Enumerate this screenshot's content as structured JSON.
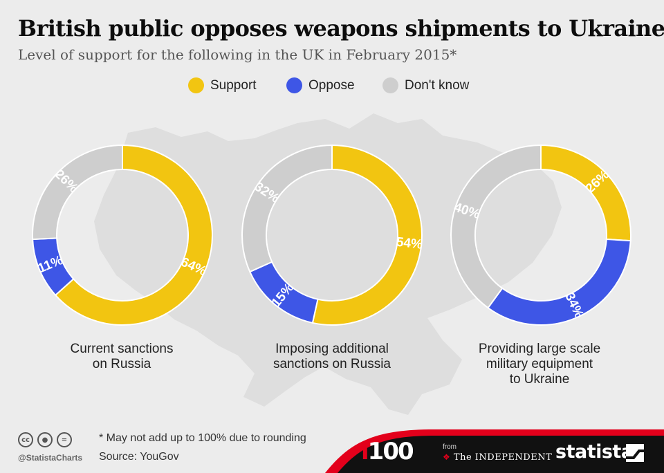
{
  "title": "British public opposes weapons shipments to Ukraine",
  "subtitle": "Level of support for the following in the UK in February 2015*",
  "colors": {
    "support": "#f2c511",
    "oppose": "#3e56e6",
    "dont_know": "#cecece",
    "map": "#dedede"
  },
  "chart_data": {
    "type": "pie",
    "variant": "donut",
    "series": [
      {
        "name": "Support",
        "color": "#f2c511"
      },
      {
        "name": "Oppose",
        "color": "#3e56e6"
      },
      {
        "name": "Don't know",
        "color": "#cecece"
      }
    ],
    "charts": [
      {
        "label": "Current sanctions on Russia",
        "label_lines": [
          "Current sanctions",
          "on Russia"
        ],
        "values": [
          64,
          11,
          26
        ]
      },
      {
        "label": "Imposing additional sanctions on Russia",
        "label_lines": [
          "Imposing additional",
          "sanctions on Russia"
        ],
        "values": [
          54,
          15,
          32
        ]
      },
      {
        "label": "Providing large scale military equipment to Ukraine",
        "label_lines": [
          "Providing large scale",
          "military equipment",
          "to Ukraine"
        ],
        "values": [
          26,
          34,
          40
        ]
      }
    ],
    "value_suffix": "%",
    "legend_position": "top-center"
  },
  "footer": {
    "note": "* May not add up to 100% due to rounding",
    "source": "Source: YouGov",
    "handle": "@StatistaCharts",
    "partner_logo": "i100",
    "partner_from": "from",
    "partner_name": "The INDEPENDENT",
    "brand": "statista"
  }
}
